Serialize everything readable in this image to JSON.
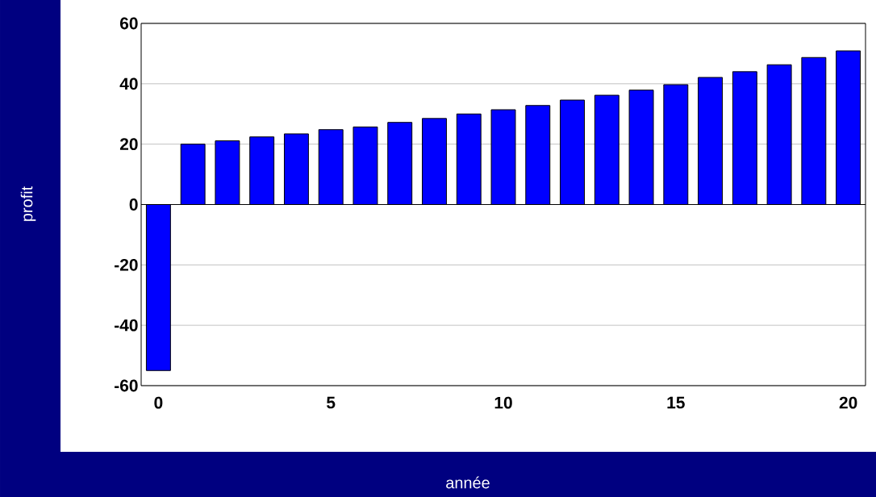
{
  "chart_data": {
    "type": "bar",
    "xlabel": "année",
    "ylabel": "profit",
    "x": [
      0,
      1,
      2,
      3,
      4,
      5,
      6,
      7,
      8,
      9,
      10,
      11,
      12,
      13,
      14,
      15,
      16,
      17,
      18,
      19,
      20
    ],
    "values": [
      -55,
      20,
      21.1,
      22.4,
      23.4,
      24.8,
      25.7,
      27.2,
      28.5,
      30,
      31.4,
      32.8,
      34.6,
      36.2,
      37.9,
      39.7,
      42.1,
      44,
      46.3,
      48.7,
      50.9
    ],
    "color": "#0000ff",
    "xlim": [
      -0.5,
      20.5
    ],
    "xticks": [
      0,
      5,
      10,
      15,
      20
    ],
    "ylim": [
      -60,
      60
    ],
    "yticks": [
      -60,
      -40,
      -20,
      0,
      20,
      40,
      60
    ],
    "grid": "y"
  }
}
